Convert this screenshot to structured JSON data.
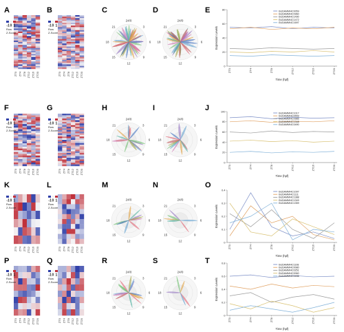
{
  "figure": {
    "panel_labels": [
      "A",
      "B",
      "C",
      "D",
      "E",
      "F",
      "G",
      "H",
      "I",
      "J",
      "K",
      "L",
      "M",
      "N",
      "O",
      "P",
      "Q",
      "R",
      "S",
      "T"
    ],
    "heatmap_key": {
      "numbers": [
        "-1",
        "0",
        "1"
      ],
      "line1": "Row",
      "line2": "Z-Score"
    },
    "time_points": [
      "ZT0",
      "ZT4",
      "ZT8",
      "ZT12",
      "ZT16",
      "ZT20"
    ],
    "clock_labels": [
      "24/0",
      "3",
      "6",
      "9",
      "12",
      "15",
      "18",
      "21"
    ],
    "x_axis_label": "Time (hpf)",
    "y_axis_label": "Expression Levels",
    "colors": {
      "high": "#c0303a",
      "low": "#2f3fa8",
      "mid": "#f4f4f6"
    }
  },
  "chart_data": [
    {
      "type": "line",
      "panel": "E",
      "x": [
        "ZT0",
        "ZT4",
        "ZT8",
        "ZT12",
        "ZT16",
        "ZT20"
      ],
      "ylim": [
        0,
        80
      ],
      "yticks": [
        0,
        20,
        40,
        60,
        80
      ],
      "xlabel": "Time (hpf)",
      "ylabel": "Expression Levels",
      "series": [
        {
          "name": "GUDAMM/4C0059",
          "color": "#7b8ec7",
          "values": [
            55,
            54,
            56,
            53,
            55,
            54
          ]
        },
        {
          "name": "GUDAMM/4C0960",
          "color": "#e0a060",
          "values": [
            53,
            55,
            52,
            54,
            53,
            55
          ]
        },
        {
          "name": "GUDAMM/4C1490",
          "color": "#9a9a9a",
          "values": [
            25,
            24,
            26,
            25,
            24,
            25
          ]
        },
        {
          "name": "GUDAMM/4C1472",
          "color": "#d8c070",
          "values": [
            20,
            19,
            21,
            20,
            22,
            20
          ]
        },
        {
          "name": "GUDAMM/4C1697",
          "color": "#7fb0d8",
          "values": [
            15,
            14,
            16,
            15,
            14,
            15
          ]
        }
      ]
    },
    {
      "type": "line",
      "panel": "J",
      "x": [
        "ZT0",
        "ZT4",
        "ZT8",
        "ZT12",
        "ZT16",
        "ZT20"
      ],
      "ylim": [
        0,
        100
      ],
      "yticks": [
        0,
        20,
        40,
        60,
        80,
        100
      ],
      "xlabel": "Time (hpf)",
      "ylabel": "Expression Levels",
      "series": [
        {
          "name": "GUDAMM/4C1017",
          "color": "#7b8ec7",
          "values": [
            88,
            90,
            86,
            89,
            87,
            88
          ]
        },
        {
          "name": "GUDAMM/4C0559",
          "color": "#e0a060",
          "values": [
            80,
            82,
            79,
            81,
            80,
            82
          ]
        },
        {
          "name": "GUDAMM/4C0985",
          "color": "#9a9a9a",
          "values": [
            60,
            58,
            62,
            59,
            61,
            60
          ]
        },
        {
          "name": "GUDAMM/4C1348",
          "color": "#d8c070",
          "values": [
            42,
            44,
            41,
            43,
            40,
            42
          ]
        },
        {
          "name": "GUDAMM/4C0490",
          "color": "#7fb0d8",
          "values": [
            20,
            22,
            19,
            21,
            20,
            22
          ]
        }
      ]
    },
    {
      "type": "line",
      "panel": "O",
      "x": [
        "ZT0",
        "ZT4",
        "ZT8",
        "ZT12",
        "ZT16",
        "ZT20"
      ],
      "ylim": [
        0,
        0.4
      ],
      "yticks": [
        0,
        0.1,
        0.2,
        0.3,
        0.4
      ],
      "xlabel": "Time (hpf)",
      "ylabel": "Expression Levels",
      "series": [
        {
          "name": "GUDAMM/4C1097",
          "color": "#7b8ec7",
          "values": [
            0.1,
            0.38,
            0.12,
            0.05,
            0.08,
            0.03
          ]
        },
        {
          "name": "GUDAMM/4C1111",
          "color": "#e0a060",
          "values": [
            0.05,
            0.28,
            0.15,
            0.2,
            0.06,
            0.02
          ]
        },
        {
          "name": "GUDAMM/4C1388",
          "color": "#9a9a9a",
          "values": [
            0.22,
            0.12,
            0.25,
            0.1,
            0.03,
            0.15
          ]
        },
        {
          "name": "GUDAMM/4C1349",
          "color": "#d8c070",
          "values": [
            0.3,
            0.08,
            0.05,
            0.18,
            0.12,
            0.06
          ]
        },
        {
          "name": "GUDAMM/4C1359",
          "color": "#7fb0d8",
          "values": [
            0.15,
            0.2,
            0.3,
            0.02,
            0.1,
            0.08
          ]
        }
      ]
    },
    {
      "type": "line",
      "panel": "T",
      "x": [
        "ZT0",
        "ZT4",
        "ZT8",
        "ZT12",
        "ZT16",
        "ZT20"
      ],
      "ylim": [
        0,
        0.8
      ],
      "yticks": [
        0,
        0.2,
        0.4,
        0.6,
        0.8
      ],
      "xlabel": "Time (hpf)",
      "ylabel": "Expression Levels",
      "series": [
        {
          "name": "GUDAMM/4C1108",
          "color": "#7b8ec7",
          "values": [
            0.6,
            0.62,
            0.58,
            0.61,
            0.59,
            0.6
          ]
        },
        {
          "name": "GUDAMM/4C0080",
          "color": "#e0a060",
          "values": [
            0.45,
            0.4,
            0.48,
            0.42,
            0.46,
            0.44
          ]
        },
        {
          "name": "GUDAMM/4C0251",
          "color": "#9a9a9a",
          "values": [
            0.3,
            0.35,
            0.2,
            0.28,
            0.32,
            0.25
          ]
        },
        {
          "name": "GUDAMM/4C0060",
          "color": "#d8c070",
          "values": [
            0.18,
            0.1,
            0.22,
            0.15,
            0.05,
            0.12
          ]
        },
        {
          "name": "GUDAMM/4C0436",
          "color": "#7fb0d8",
          "values": [
            0.08,
            0.15,
            0.1,
            0.05,
            0.12,
            0.2
          ]
        }
      ]
    }
  ]
}
